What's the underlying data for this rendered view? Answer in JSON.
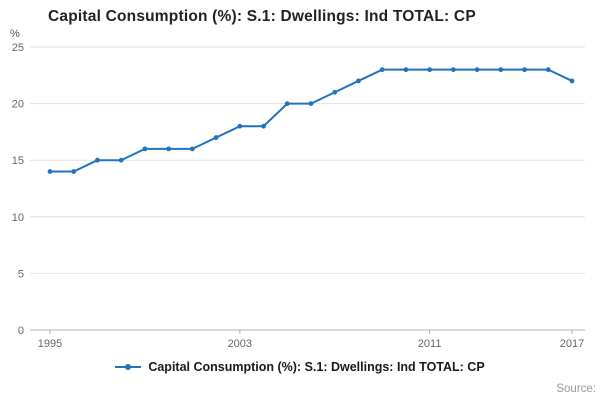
{
  "page": {
    "source_label": "Source:"
  },
  "chart_data": {
    "type": "line",
    "title": "Capital Consumption (%): S.1: Dwellings: Ind TOTAL: CP",
    "ylabel": "%",
    "xlabel": "",
    "x": [
      1995,
      1996,
      1997,
      1998,
      1999,
      2000,
      2001,
      2002,
      2003,
      2004,
      2005,
      2006,
      2007,
      2008,
      2009,
      2010,
      2011,
      2012,
      2013,
      2014,
      2015,
      2016,
      2017
    ],
    "series": [
      {
        "name": "Capital Consumption (%): S.1: Dwellings: Ind TOTAL: CP",
        "color": "#2073BC",
        "values": [
          14,
          14,
          15,
          15,
          16,
          16,
          16,
          17,
          18,
          18,
          20,
          20,
          21,
          22,
          23,
          23,
          23,
          23,
          23,
          23,
          23,
          23,
          22
        ]
      }
    ],
    "ylim": [
      0,
      25
    ],
    "yticks": [
      0,
      5,
      10,
      15,
      20,
      25
    ],
    "xticks": [
      1995,
      2003,
      2011,
      2017
    ],
    "grid": true,
    "legend_position": "bottom"
  },
  "colors": {
    "grid": "#e2e2e2",
    "axis": "#b3b3b3",
    "tick_text": "#666666",
    "title_text": "#222222",
    "source_text": "#999999"
  }
}
